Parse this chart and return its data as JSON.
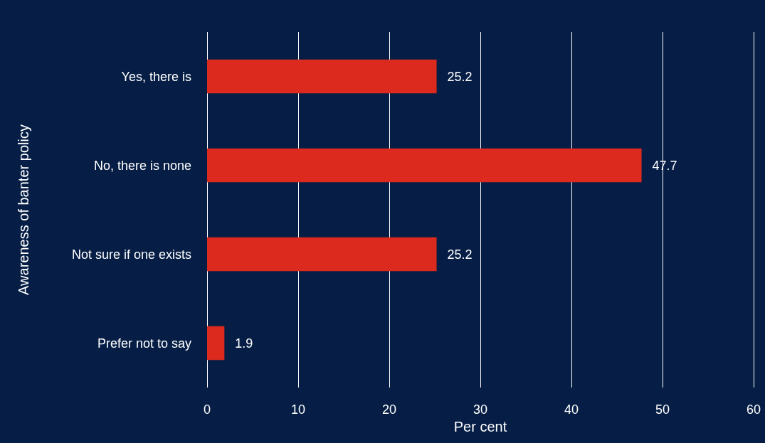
{
  "chart_data": {
    "type": "bar",
    "orientation": "horizontal",
    "categories": [
      "Yes, there is",
      "No, there is none",
      "Not sure if one exists",
      "Prefer not to say"
    ],
    "values": [
      25.2,
      47.7,
      25.2,
      1.9
    ],
    "color": "#dc2a1f",
    "xlabel": "Per cent",
    "ylabel": "Awareness of banter policy",
    "xlim": [
      0,
      60
    ],
    "xticks": [
      0,
      10,
      20,
      30,
      40,
      50,
      60
    ],
    "grid": "x",
    "data_labels": true
  }
}
